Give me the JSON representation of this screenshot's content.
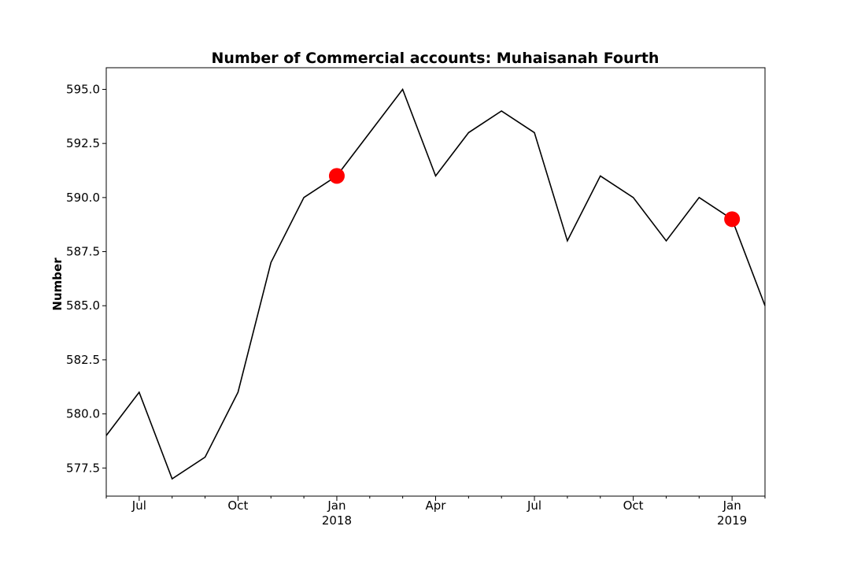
{
  "chart_data": {
    "type": "line",
    "title": "Number of Commercial accounts: Muhaisanah Fourth",
    "xlabel": "",
    "ylabel": "Number",
    "x": [
      "2017-06",
      "2017-07",
      "2017-08",
      "2017-09",
      "2017-10",
      "2017-11",
      "2017-12",
      "2018-01",
      "2018-02",
      "2018-03",
      "2018-04",
      "2018-05",
      "2018-06",
      "2018-07",
      "2018-08",
      "2018-09",
      "2018-10",
      "2018-11",
      "2018-12",
      "2019-01",
      "2019-02"
    ],
    "series": [
      {
        "values": [
          579,
          581,
          577,
          578,
          581,
          587,
          590,
          591,
          593,
          595,
          591,
          593,
          594,
          593,
          588,
          591,
          590,
          588,
          590,
          589,
          585
        ],
        "color": "#000000"
      }
    ],
    "highlighted_points": [
      {
        "x": "2018-01",
        "y": 591,
        "color": "#ff0000"
      },
      {
        "x": "2019-01",
        "y": 589,
        "color": "#ff0000"
      }
    ],
    "x_ticks": [
      {
        "x": "2017-07",
        "label": "Jul",
        "sublabel": ""
      },
      {
        "x": "2017-10",
        "label": "Oct",
        "sublabel": ""
      },
      {
        "x": "2018-01",
        "label": "Jan",
        "sublabel": "2018"
      },
      {
        "x": "2018-04",
        "label": "Apr",
        "sublabel": ""
      },
      {
        "x": "2018-07",
        "label": "Jul",
        "sublabel": ""
      },
      {
        "x": "2018-10",
        "label": "Oct",
        "sublabel": ""
      },
      {
        "x": "2019-01",
        "label": "Jan",
        "sublabel": "2019"
      }
    ],
    "y_ticks": [
      "577.5",
      "580.0",
      "582.5",
      "585.0",
      "587.5",
      "590.0",
      "592.5",
      "595.0"
    ],
    "ylim": [
      576.2,
      596.0
    ],
    "grid": false,
    "legend": "none"
  }
}
